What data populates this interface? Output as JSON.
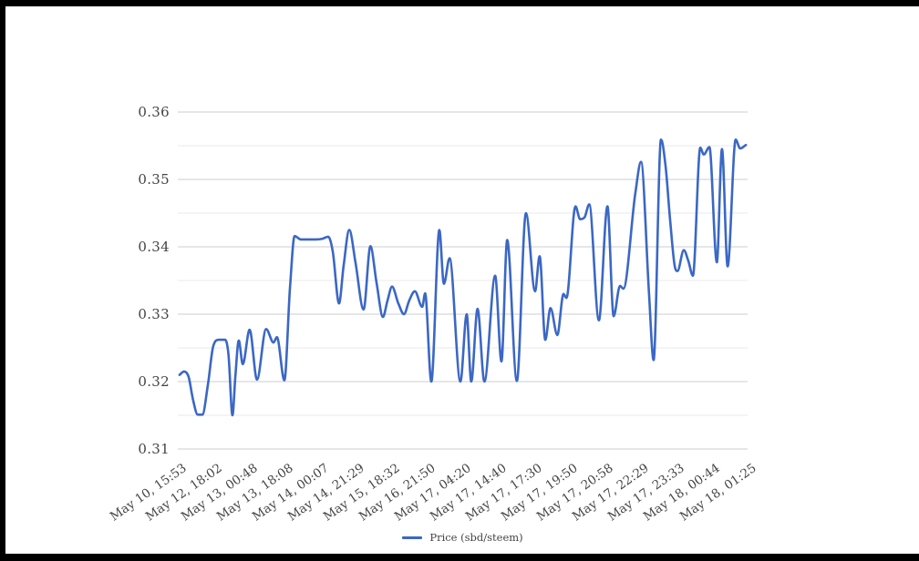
{
  "legend": {
    "label": "Price (sbd/steem)"
  },
  "colors": {
    "series_blue": "#3b67c5",
    "axis_text": "#444444",
    "grid_major": "#cccccc",
    "grid_minor": "#e9e9e9",
    "frame": "#000000",
    "background": "#ffffff"
  },
  "chart_data": {
    "type": "line",
    "title": "",
    "legend_position": "bottom-center",
    "grid": {
      "horizontal": true,
      "vertical": false
    },
    "ylim": [
      0.31,
      0.36
    ],
    "y_major_ticks": [
      0.36,
      0.35,
      0.34,
      0.33,
      0.32,
      0.31
    ],
    "y_tick_labels": [
      "0.36",
      "0.35",
      "0.34",
      "0.33",
      "0.32",
      "0.31"
    ],
    "y_minor_ticks": [
      0.355,
      0.345,
      0.335,
      0.325,
      0.315
    ],
    "x_tick_labels": [
      "May 10, 15:53",
      "May 12, 18:02",
      "May 13, 00:48",
      "May 13, 18:08",
      "May 14, 00:07",
      "May 14, 21:29",
      "May 15, 18:32",
      "May 16, 21:50",
      "May 17, 04:20",
      "May 17, 14:40",
      "May 17, 17:30",
      "May 17, 19:50",
      "May 17, 20:58",
      "May 17, 22:29",
      "May 17, 23:33",
      "May 18, 00:44",
      "May 18, 01:25"
    ],
    "series": [
      {
        "name": "Price (sbd/steem)",
        "color": "#3b67c5",
        "points": [
          [
            0.003,
            0.321
          ],
          [
            0.011,
            0.3215
          ],
          [
            0.019,
            0.3207
          ],
          [
            0.027,
            0.3172
          ],
          [
            0.035,
            0.3151
          ],
          [
            0.043,
            0.3151
          ],
          [
            0.053,
            0.3196
          ],
          [
            0.062,
            0.3252
          ],
          [
            0.072,
            0.3262
          ],
          [
            0.083,
            0.3262
          ],
          [
            0.089,
            0.324
          ],
          [
            0.096,
            0.315
          ],
          [
            0.101,
            0.3207
          ],
          [
            0.107,
            0.3261
          ],
          [
            0.114,
            0.3226
          ],
          [
            0.126,
            0.3277
          ],
          [
            0.139,
            0.3203
          ],
          [
            0.155,
            0.3278
          ],
          [
            0.168,
            0.3258
          ],
          [
            0.174,
            0.3266
          ],
          [
            0.187,
            0.3202
          ],
          [
            0.197,
            0.334
          ],
          [
            0.205,
            0.3416
          ],
          [
            0.216,
            0.3411
          ],
          [
            0.229,
            0.3411
          ],
          [
            0.242,
            0.3411
          ],
          [
            0.254,
            0.3412
          ],
          [
            0.264,
            0.3415
          ],
          [
            0.272,
            0.3393
          ],
          [
            0.283,
            0.3316
          ],
          [
            0.291,
            0.3372
          ],
          [
            0.301,
            0.3425
          ],
          [
            0.312,
            0.3376
          ],
          [
            0.326,
            0.3307
          ],
          [
            0.338,
            0.3401
          ],
          [
            0.349,
            0.3346
          ],
          [
            0.36,
            0.3296
          ],
          [
            0.368,
            0.332
          ],
          [
            0.376,
            0.3341
          ],
          [
            0.387,
            0.3316
          ],
          [
            0.397,
            0.33
          ],
          [
            0.406,
            0.332
          ],
          [
            0.416,
            0.3334
          ],
          [
            0.429,
            0.3311
          ],
          [
            0.434,
            0.3331
          ],
          [
            0.445,
            0.32
          ],
          [
            0.459,
            0.3425
          ],
          [
            0.467,
            0.3345
          ],
          [
            0.477,
            0.3383
          ],
          [
            0.496,
            0.32
          ],
          [
            0.507,
            0.33
          ],
          [
            0.515,
            0.32
          ],
          [
            0.526,
            0.3308
          ],
          [
            0.538,
            0.32
          ],
          [
            0.557,
            0.3357
          ],
          [
            0.568,
            0.323
          ],
          [
            0.578,
            0.341
          ],
          [
            0.595,
            0.3201
          ],
          [
            0.611,
            0.345
          ],
          [
            0.627,
            0.3334
          ],
          [
            0.635,
            0.3386
          ],
          [
            0.645,
            0.3262
          ],
          [
            0.654,
            0.3309
          ],
          [
            0.666,
            0.3269
          ],
          [
            0.677,
            0.333
          ],
          [
            0.682,
            0.3324
          ],
          [
            0.698,
            0.346
          ],
          [
            0.706,
            0.3441
          ],
          [
            0.714,
            0.3444
          ],
          [
            0.722,
            0.3463
          ],
          [
            0.739,
            0.3291
          ],
          [
            0.754,
            0.346
          ],
          [
            0.765,
            0.3297
          ],
          [
            0.776,
            0.3342
          ],
          [
            0.782,
            0.3338
          ],
          [
            0.803,
            0.348
          ],
          [
            0.813,
            0.3526
          ],
          [
            0.827,
            0.333
          ],
          [
            0.835,
            0.3232
          ],
          [
            0.848,
            0.3559
          ],
          [
            0.856,
            0.352
          ],
          [
            0.864,
            0.344
          ],
          [
            0.872,
            0.3372
          ],
          [
            0.877,
            0.3364
          ],
          [
            0.888,
            0.3395
          ],
          [
            0.896,
            0.3379
          ],
          [
            0.904,
            0.3357
          ],
          [
            0.917,
            0.3547
          ],
          [
            0.923,
            0.3537
          ],
          [
            0.933,
            0.3548
          ],
          [
            0.946,
            0.3377
          ],
          [
            0.955,
            0.3545
          ],
          [
            0.965,
            0.3371
          ],
          [
            0.979,
            0.3559
          ],
          [
            0.987,
            0.3546
          ],
          [
            0.997,
            0.3551
          ]
        ]
      }
    ]
  }
}
